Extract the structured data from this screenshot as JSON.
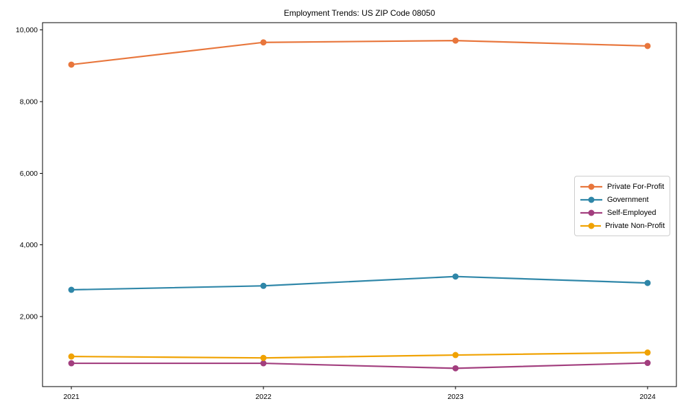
{
  "window": {
    "background": "#ffffff"
  },
  "chart_data": {
    "type": "line",
    "title": "Employment Trends: US ZIP Code 08050",
    "x": [
      2021,
      2022,
      2023,
      2024
    ],
    "x_labels": [
      "2021",
      "2022",
      "2023",
      "2024"
    ],
    "xlim": [
      2020.85,
      2024.15
    ],
    "ylim": [
      50,
      10200
    ],
    "yticks": [
      2000,
      4000,
      6000,
      8000,
      10000
    ],
    "ytick_labels": [
      "2,000",
      "4,000",
      "6,000",
      "8,000",
      "10,000"
    ],
    "xlabel": "",
    "ylabel": "",
    "grid": false,
    "legend_position": "center-right",
    "axis_color": "#000000",
    "legend_border_color": "#cccccc",
    "series": [
      {
        "name": "Private For-Profit",
        "color": "#E8763C",
        "values": [
          9030,
          9650,
          9700,
          9550
        ]
      },
      {
        "name": "Government",
        "color": "#2E86A8",
        "values": [
          2750,
          2860,
          3120,
          2940
        ]
      },
      {
        "name": "Self-Employed",
        "color": "#A23E7E",
        "values": [
          700,
          700,
          560,
          710
        ]
      },
      {
        "name": "Private Non-Profit",
        "color": "#F0A202",
        "values": [
          890,
          850,
          930,
          1000
        ]
      }
    ]
  }
}
